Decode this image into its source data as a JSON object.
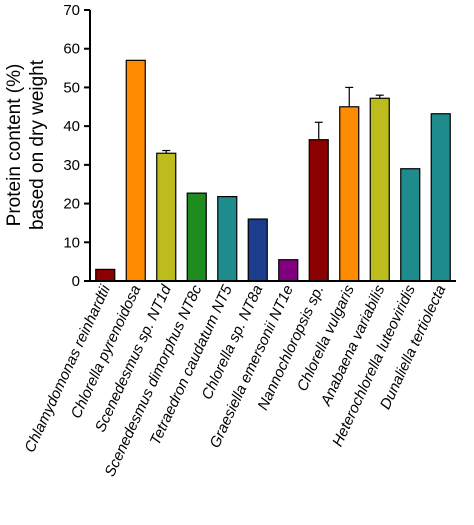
{
  "chart_data": {
    "type": "bar",
    "ylabel_lines": [
      "Protein content (%)",
      "based on dry weight"
    ],
    "ylim": [
      0,
      70
    ],
    "yticks": [
      0,
      10,
      20,
      30,
      40,
      50,
      60,
      70
    ],
    "grid": false,
    "legend": "none",
    "categories": [
      "Chlamydomonas reinhardtii",
      "Chlorella pyrenoidosa",
      "Scenedesmus sp. NT1d",
      "Scenedesmus dimorphus NT8c",
      "Tetraedron caudatum NT5",
      "Chlorella sp. NT8a",
      "Graesiella emersonii NT1e",
      "Nannochloropsis sp.",
      "Chlorella vulgaris",
      "Anabaena variabilis",
      "Heterochlorella luteoviridis",
      "Dunaliella tertiolecta"
    ],
    "values": [
      3,
      57,
      33,
      22.7,
      21.8,
      16,
      5.5,
      36.5,
      45,
      47.2,
      29,
      43.2
    ],
    "errors": [
      null,
      null,
      0.7,
      null,
      null,
      null,
      null,
      4.5,
      5,
      0.8,
      null,
      null
    ],
    "colors": [
      "#8b0000",
      "#ff8c00",
      "#bcbc1c",
      "#1e8c1e",
      "#1e8c8c",
      "#1c3c8c",
      "#800080",
      "#8b0000",
      "#ff8c00",
      "#bcbc1c",
      "#1e8c8c",
      "#1e8c8c"
    ]
  }
}
